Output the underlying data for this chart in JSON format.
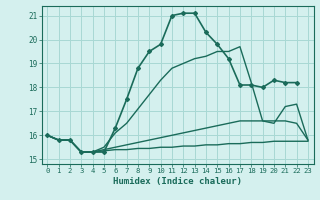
{
  "title": "",
  "xlabel": "Humidex (Indice chaleur)",
  "background_color": "#d4f0ee",
  "grid_color": "#a8d8d4",
  "line_color": "#1a6b5a",
  "xlim": [
    -0.5,
    23.5
  ],
  "ylim": [
    14.8,
    21.4
  ],
  "xticks": [
    0,
    1,
    2,
    3,
    4,
    5,
    6,
    7,
    8,
    9,
    10,
    11,
    12,
    13,
    14,
    15,
    16,
    17,
    18,
    19,
    20,
    21,
    22,
    23
  ],
  "yticks": [
    15,
    16,
    17,
    18,
    19,
    20,
    21
  ],
  "series": [
    {
      "x": [
        0,
        1,
        2,
        3,
        4,
        5,
        6,
        7,
        8,
        9,
        10,
        11,
        12,
        13,
        14,
        15,
        16,
        17,
        18,
        19,
        20,
        21,
        22
      ],
      "y": [
        16.0,
        15.8,
        15.8,
        15.3,
        15.3,
        15.3,
        16.3,
        17.5,
        18.8,
        19.5,
        19.8,
        21.0,
        21.1,
        21.1,
        20.3,
        19.8,
        19.2,
        18.1,
        18.1,
        18.0,
        18.3,
        18.2,
        18.2
      ],
      "marker": "D",
      "markersize": 2.0,
      "linewidth": 1.2
    },
    {
      "x": [
        0,
        1,
        2,
        3,
        4,
        5,
        6,
        7,
        8,
        9,
        10,
        11,
        12,
        13,
        14,
        15,
        16,
        17,
        18,
        19,
        20,
        21,
        22,
        23
      ],
      "y": [
        16.0,
        15.8,
        15.8,
        15.3,
        15.3,
        15.5,
        16.1,
        16.5,
        17.1,
        17.7,
        18.3,
        18.8,
        19.0,
        19.2,
        19.3,
        19.5,
        19.5,
        19.7,
        18.2,
        16.6,
        16.5,
        17.2,
        17.3,
        15.8
      ],
      "marker": null,
      "markersize": 0,
      "linewidth": 1.0
    },
    {
      "x": [
        0,
        1,
        2,
        3,
        4,
        5,
        6,
        7,
        8,
        9,
        10,
        11,
        12,
        13,
        14,
        15,
        16,
        17,
        18,
        19,
        20,
        21,
        22,
        23
      ],
      "y": [
        16.0,
        15.8,
        15.8,
        15.3,
        15.3,
        15.4,
        15.5,
        15.6,
        15.7,
        15.8,
        15.9,
        16.0,
        16.1,
        16.2,
        16.3,
        16.4,
        16.5,
        16.6,
        16.6,
        16.6,
        16.6,
        16.6,
        16.5,
        15.8
      ],
      "marker": null,
      "markersize": 0,
      "linewidth": 1.0
    },
    {
      "x": [
        0,
        1,
        2,
        3,
        4,
        5,
        6,
        7,
        8,
        9,
        10,
        11,
        12,
        13,
        14,
        15,
        16,
        17,
        18,
        19,
        20,
        21,
        22,
        23
      ],
      "y": [
        16.0,
        15.8,
        15.8,
        15.3,
        15.3,
        15.35,
        15.4,
        15.4,
        15.45,
        15.45,
        15.5,
        15.5,
        15.55,
        15.55,
        15.6,
        15.6,
        15.65,
        15.65,
        15.7,
        15.7,
        15.75,
        15.75,
        15.75,
        15.75
      ],
      "marker": null,
      "markersize": 0,
      "linewidth": 1.0
    }
  ]
}
